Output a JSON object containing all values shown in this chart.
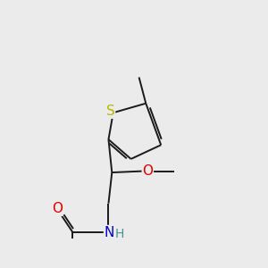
{
  "background_color": "#ebebeb",
  "bond_color": "#1a1a1a",
  "bond_width": 1.4,
  "atom_colors": {
    "S_thio": "#b8b800",
    "S_sulfonyl": "#cccc00",
    "N": "#0000cc",
    "O": "#dd0000",
    "H": "#4a9090",
    "C": "#1a1a1a"
  },
  "font_size": 10.5
}
